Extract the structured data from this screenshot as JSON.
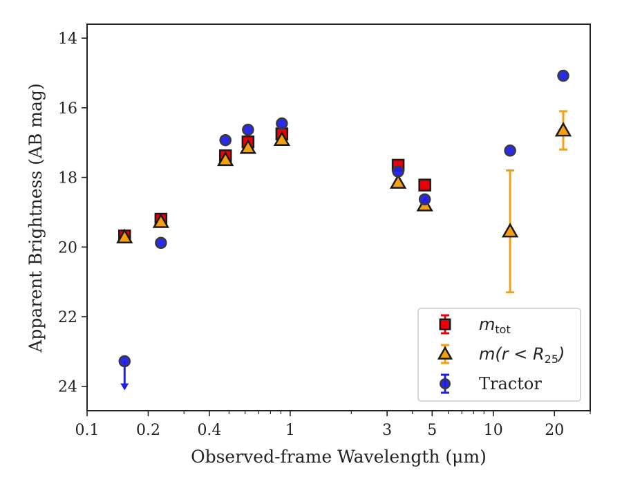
{
  "chart_data": {
    "type": "scatter",
    "xlabel": "Observed-frame Wavelength (μm)",
    "ylabel": "Apparent Brightness (AB mag)",
    "x_scale": "log",
    "xlim": [
      0.1,
      30
    ],
    "ylim": [
      24.7,
      13.6
    ],
    "y_inverted": true,
    "x_ticks": [
      {
        "value": 0.1,
        "label": "0.1"
      },
      {
        "value": 0.2,
        "label": "0.2"
      },
      {
        "value": 0.4,
        "label": "0.4"
      },
      {
        "value": 1,
        "label": "1"
      },
      {
        "value": 3,
        "label": "3"
      },
      {
        "value": 5,
        "label": "5"
      },
      {
        "value": 10,
        "label": "10"
      },
      {
        "value": 20,
        "label": "20"
      }
    ],
    "y_ticks": [
      {
        "value": 14,
        "label": "14"
      },
      {
        "value": 16,
        "label": "16"
      },
      {
        "value": 18,
        "label": "18"
      },
      {
        "value": 20,
        "label": "20"
      },
      {
        "value": 22,
        "label": "22"
      },
      {
        "value": 24,
        "label": "24"
      }
    ],
    "grid": false,
    "legend_position": "bottom-right",
    "series": [
      {
        "name": "m_tot",
        "legend_main": "m",
        "legend_sub": "tot",
        "marker": "square",
        "color": "#e8000b",
        "edge": "#1a1a1a",
        "points": [
          {
            "x": 0.153,
            "y": 19.68,
            "err": 0.05
          },
          {
            "x": 0.231,
            "y": 19.2,
            "err": 0.05
          },
          {
            "x": 0.48,
            "y": 17.38,
            "err": 0.05
          },
          {
            "x": 0.62,
            "y": 16.98,
            "err": 0.05
          },
          {
            "x": 0.91,
            "y": 16.75,
            "err": 0.05
          },
          {
            "x": 3.4,
            "y": 17.65,
            "err": 0.05
          },
          {
            "x": 4.6,
            "y": 18.22,
            "err": 0.05
          }
        ]
      },
      {
        "name": "m(r<R_25)",
        "legend_main": "m(r < R",
        "legend_sub": "25",
        "legend_tail": ")",
        "marker": "triangle",
        "color": "#f5a00f",
        "edge": "#1a1a1a",
        "points": [
          {
            "x": 0.153,
            "y": 19.72,
            "err": 0.05
          },
          {
            "x": 0.231,
            "y": 19.28,
            "err": 0.05
          },
          {
            "x": 0.48,
            "y": 17.5,
            "err": 0.05
          },
          {
            "x": 0.62,
            "y": 17.15,
            "err": 0.05
          },
          {
            "x": 0.91,
            "y": 16.92,
            "err": 0.05
          },
          {
            "x": 3.4,
            "y": 18.15,
            "err": 0.05
          },
          {
            "x": 4.6,
            "y": 18.8,
            "err": 0.05
          },
          {
            "x": 12.1,
            "y": 19.55,
            "err": 1.75
          },
          {
            "x": 22.1,
            "y": 16.65,
            "err": 0.55
          }
        ]
      },
      {
        "name": "Tractor",
        "legend_main": "Tractor",
        "marker": "circle",
        "color": "#1f1fe8",
        "edge": "#3a3a3a",
        "points": [
          {
            "x": 0.153,
            "y": 23.28,
            "err": 0.05,
            "upper_limit": true
          },
          {
            "x": 0.231,
            "y": 19.88,
            "err": 0.05
          },
          {
            "x": 0.48,
            "y": 16.93,
            "err": 0.05
          },
          {
            "x": 0.62,
            "y": 16.63,
            "err": 0.05
          },
          {
            "x": 0.91,
            "y": 16.45,
            "err": 0.05
          },
          {
            "x": 3.4,
            "y": 17.83,
            "err": 0.05
          },
          {
            "x": 4.6,
            "y": 18.63,
            "err": 0.05
          },
          {
            "x": 12.1,
            "y": 17.23,
            "err": 0.05
          },
          {
            "x": 22.1,
            "y": 15.08,
            "err": 0.05
          }
        ]
      }
    ]
  }
}
